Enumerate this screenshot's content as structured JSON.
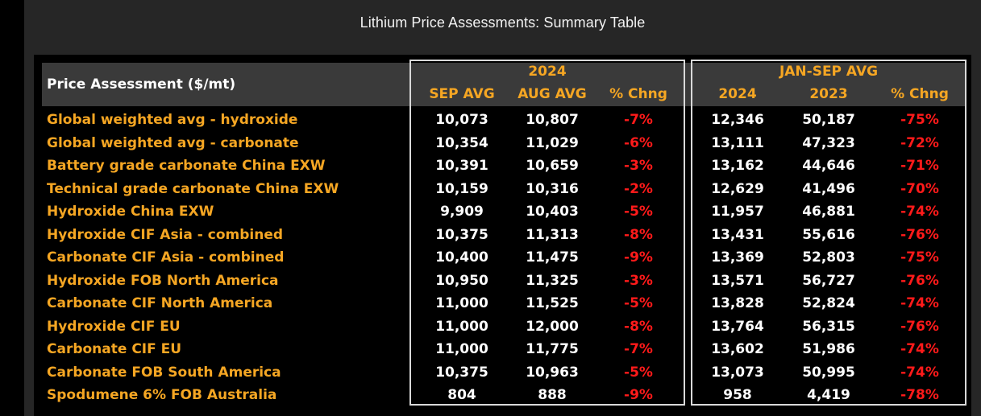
{
  "window": {
    "title": "Lithium Price Assessments: Summary Table"
  },
  "table": {
    "price_header": "Price Assessment ($/mt)",
    "group_2024": {
      "title": "2024",
      "cols": [
        "SEP AVG",
        "AUG AVG",
        "% Chng"
      ]
    },
    "group_jan": {
      "title": "JAN-SEP AVG",
      "cols": [
        "2024",
        "2023",
        "% Chng"
      ]
    },
    "rows": [
      {
        "label": "Global weighted avg - hydroxide",
        "sep": "10,073",
        "aug": "10,807",
        "chg1": "-7%",
        "y2024": "12,346",
        "y2023": "50,187",
        "chg2": "-75%"
      },
      {
        "label": "Global weighted avg - carbonate",
        "sep": "10,354",
        "aug": "11,029",
        "chg1": "-6%",
        "y2024": "13,111",
        "y2023": "47,323",
        "chg2": "-72%"
      },
      {
        "label": "Battery grade carbonate China EXW",
        "sep": "10,391",
        "aug": "10,659",
        "chg1": "-3%",
        "y2024": "13,162",
        "y2023": "44,646",
        "chg2": "-71%"
      },
      {
        "label": "Technical grade carbonate China EXW",
        "sep": "10,159",
        "aug": "10,316",
        "chg1": "-2%",
        "y2024": "12,629",
        "y2023": "41,496",
        "chg2": "-70%"
      },
      {
        "label": "Hydroxide China EXW",
        "sep": "9,909",
        "aug": "10,403",
        "chg1": "-5%",
        "y2024": "11,957",
        "y2023": "46,881",
        "chg2": "-74%"
      },
      {
        "label": "Hydroxide CIF Asia - combined",
        "sep": "10,375",
        "aug": "11,313",
        "chg1": "-8%",
        "y2024": "13,431",
        "y2023": "55,616",
        "chg2": "-76%"
      },
      {
        "label": "Carbonate CIF Asia - combined",
        "sep": "10,400",
        "aug": "11,475",
        "chg1": "-9%",
        "y2024": "13,369",
        "y2023": "52,803",
        "chg2": "-75%"
      },
      {
        "label": "Hydroxide FOB North America",
        "sep": "10,950",
        "aug": "11,325",
        "chg1": "-3%",
        "y2024": "13,571",
        "y2023": "56,727",
        "chg2": "-76%"
      },
      {
        "label": "Carbonate CIF North America",
        "sep": "11,000",
        "aug": "11,525",
        "chg1": "-5%",
        "y2024": "13,828",
        "y2023": "52,824",
        "chg2": "-74%"
      },
      {
        "label": "Hydroxide CIF EU",
        "sep": "11,000",
        "aug": "12,000",
        "chg1": "-8%",
        "y2024": "13,764",
        "y2023": "56,315",
        "chg2": "-76%"
      },
      {
        "label": "Carbonate CIF EU",
        "sep": "11,000",
        "aug": "11,775",
        "chg1": "-7%",
        "y2024": "13,602",
        "y2023": "51,986",
        "chg2": "-74%"
      },
      {
        "label": "Carbonate FOB South America",
        "sep": "10,375",
        "aug": "10,963",
        "chg1": "-5%",
        "y2024": "13,073",
        "y2023": "50,995",
        "chg2": "-74%"
      },
      {
        "label": "Spodumene 6% FOB Australia",
        "sep": "804",
        "aug": "888",
        "chg1": "-9%",
        "y2024": "958",
        "y2023": "4,419",
        "chg2": "-78%"
      }
    ]
  },
  "colors": {
    "background": "#000000",
    "title_bar": "#262626",
    "header_band": "#3a3a3a",
    "label_text": "#f5a623",
    "value_text": "#ffffff",
    "negative_change": "#ff1a1a",
    "group_border": "#d9d9d9"
  }
}
